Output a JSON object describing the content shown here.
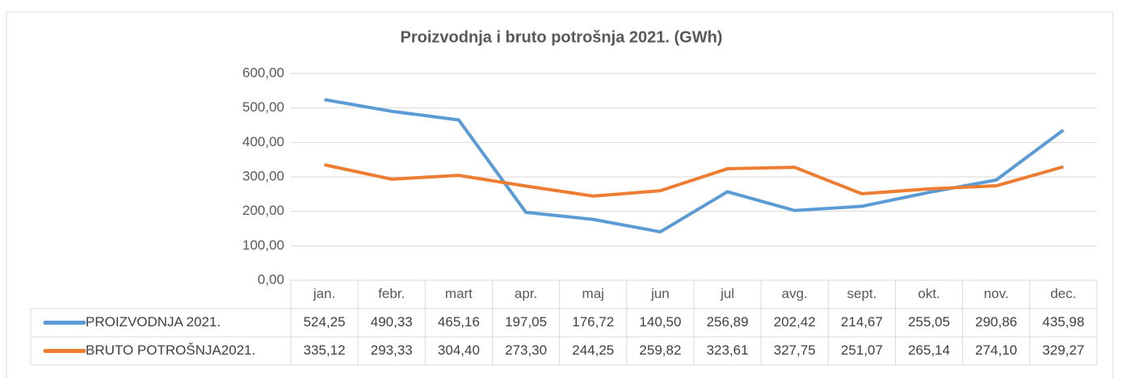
{
  "chart_data": {
    "type": "line",
    "title": "Proizvodnja i bruto potrošnja 2021. (GWh)",
    "categories": [
      "jan.",
      "febr.",
      "mart",
      "apr.",
      "maj",
      "jun",
      "jul",
      "avg.",
      "sept.",
      "okt.",
      "nov.",
      "dec."
    ],
    "series": [
      {
        "name": "PROIZVODNJA 2021.",
        "color": "#5b9bd5",
        "values": [
          524.25,
          490.33,
          465.16,
          197.05,
          176.72,
          140.5,
          256.89,
          202.42,
          214.67,
          255.05,
          290.86,
          435.98
        ],
        "value_labels": [
          "524,25",
          "490,33",
          "465,16",
          "197,05",
          "176,72",
          "140,50",
          "256,89",
          "202,42",
          "214,67",
          "255,05",
          "290,86",
          "435,98"
        ]
      },
      {
        "name": "BRUTO POTROŠNJA2021.",
        "color": "#ed7d31",
        "values": [
          335.12,
          293.33,
          304.4,
          273.3,
          244.25,
          259.82,
          323.61,
          327.75,
          251.07,
          265.14,
          274.1,
          329.27
        ],
        "value_labels": [
          "335,12",
          "293,33",
          "304,40",
          "273,30",
          "244,25",
          "259,82",
          "323,61",
          "327,75",
          "251,07",
          "265,14",
          "274,10",
          "329,27"
        ]
      }
    ],
    "ylim": [
      0,
      600
    ],
    "yticks": [
      {
        "value": 0,
        "label": "0,00"
      },
      {
        "value": 100,
        "label": "100,00"
      },
      {
        "value": 200,
        "label": "200,00"
      },
      {
        "value": 300,
        "label": "300,00"
      },
      {
        "value": 400,
        "label": "400,00"
      },
      {
        "value": 500,
        "label": "500,00"
      },
      {
        "value": 600,
        "label": "600,00"
      }
    ],
    "grid": true
  }
}
